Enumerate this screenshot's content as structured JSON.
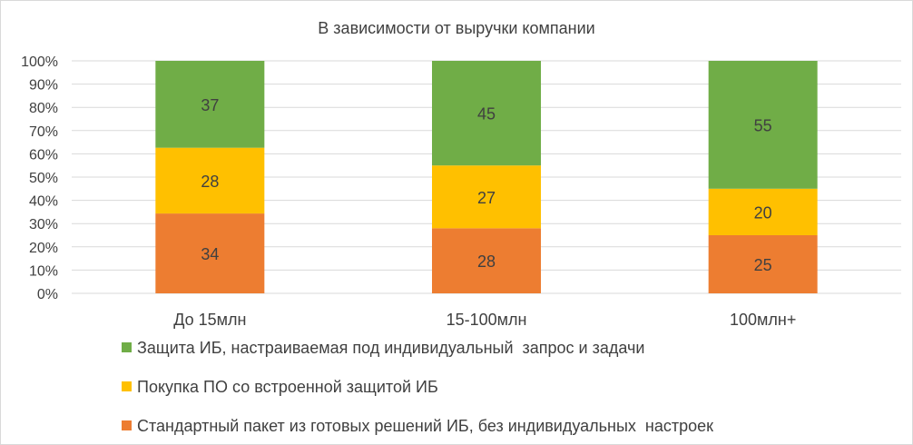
{
  "chart_data": {
    "type": "bar",
    "stacked": "percent",
    "title": "В зависимости от выручки компании",
    "xlabel": "",
    "ylabel": "",
    "categories": [
      "До 15млн",
      "15-100млн",
      "100млн+"
    ],
    "y_ticks": [
      "0%",
      "10%",
      "20%",
      "30%",
      "40%",
      "50%",
      "60%",
      "70%",
      "80%",
      "90%",
      "100%"
    ],
    "ylim": [
      0,
      100
    ],
    "grid": true,
    "legend_position": "bottom",
    "series": [
      {
        "name": "Стандартный пакет из готовых решений ИБ, без индивидуальных  настроек",
        "values": [
          34,
          28,
          25
        ],
        "color": "#ED7D31"
      },
      {
        "name": "Покупка ПО со встроенной защитой ИБ",
        "values": [
          28,
          27,
          20
        ],
        "color": "#FFC000"
      },
      {
        "name": "Защита ИБ, настраиваемая под индивидуальный  запрос и задачи",
        "values": [
          37,
          45,
          55
        ],
        "color": "#70AD47"
      }
    ],
    "legend_order": [
      2,
      1,
      0
    ]
  }
}
